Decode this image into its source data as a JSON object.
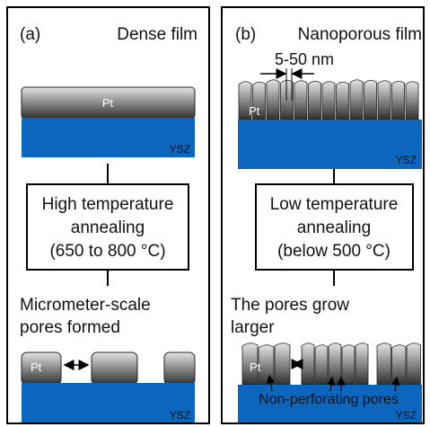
{
  "panels": [
    {
      "label": "(a)",
      "title": "Dense film",
      "film_label": "Pt",
      "substrate_label": "YSZ",
      "process": [
        "High temperature",
        "annealing",
        "(650 to 800 °C)"
      ],
      "result": [
        "Micrometer-scale",
        "pores formed"
      ],
      "result_film_label": "Pt",
      "result_substrate_label": "YSZ"
    },
    {
      "label": "(b)",
      "title": "Nanoporous film",
      "gap_label": "5-50 nm",
      "film_label": "Pt",
      "substrate_label": "YSZ",
      "process": [
        "Low temperature",
        "annealing",
        "(below 500 °C)"
      ],
      "result": [
        "The pores grow",
        "larger"
      ],
      "result_film_label": "Pt",
      "result_substrate_label": "YSZ",
      "annotation": "Non-perforating pores"
    }
  ]
}
